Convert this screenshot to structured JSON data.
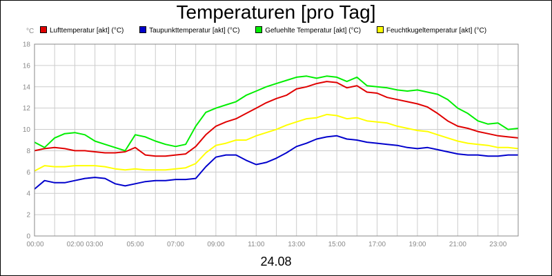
{
  "chart_data": {
    "type": "line",
    "title": "Temperaturen [pro Tag]",
    "unit": "°C",
    "xlabel": "24.08",
    "ylim": [
      0,
      18
    ],
    "yticks": [
      "0",
      "2",
      "4",
      "6",
      "8",
      "10",
      "12",
      "14",
      "16",
      "18"
    ],
    "x_tick_labels": [
      "00:00",
      "02:00 03:00",
      "05:00",
      "07:00",
      "09:00",
      "11:00",
      "13:00",
      "15:00",
      "17:00",
      "19:00",
      "21:00",
      "23:00"
    ],
    "x_range_hours": [
      0,
      24
    ],
    "grid": true,
    "legend_placement": "top",
    "series": [
      {
        "name": "Lufttemperatur [akt] (°C)",
        "color": "#e00000",
        "x": [
          0,
          0.5,
          1,
          1.5,
          2,
          2.5,
          3,
          3.5,
          4,
          4.5,
          5,
          5.5,
          6,
          6.5,
          7,
          7.5,
          8,
          8.5,
          9,
          9.5,
          10,
          10.5,
          11,
          11.5,
          12,
          12.5,
          13,
          13.5,
          14,
          14.5,
          15,
          15.5,
          16,
          16.5,
          17,
          17.5,
          18,
          18.5,
          19,
          19.5,
          20,
          20.5,
          21,
          21.5,
          22,
          22.5,
          23,
          23.5,
          24
        ],
        "values": [
          8.0,
          8.2,
          8.3,
          8.2,
          8.0,
          8.0,
          7.9,
          7.8,
          7.8,
          7.9,
          8.3,
          7.6,
          7.5,
          7.5,
          7.6,
          7.7,
          8.4,
          9.5,
          10.3,
          10.7,
          11.0,
          11.5,
          12.0,
          12.5,
          12.9,
          13.2,
          13.8,
          14.0,
          14.3,
          14.5,
          14.4,
          13.9,
          14.1,
          13.5,
          13.4,
          13.0,
          12.8,
          12.6,
          12.4,
          12.1,
          11.5,
          10.8,
          10.3,
          10.1,
          9.8,
          9.6,
          9.4,
          9.3,
          9.2
        ]
      },
      {
        "name": "Taupunkttemperatur [akt] (°C)",
        "color": "#0000cc",
        "x": [
          0,
          0.5,
          1,
          1.5,
          2,
          2.5,
          3,
          3.5,
          4,
          4.5,
          5,
          5.5,
          6,
          6.5,
          7,
          7.5,
          8,
          8.5,
          9,
          9.5,
          10,
          10.5,
          11,
          11.5,
          12,
          12.5,
          13,
          13.5,
          14,
          14.5,
          15,
          15.5,
          16,
          16.5,
          17,
          17.5,
          18,
          18.5,
          19,
          19.5,
          20,
          20.5,
          21,
          21.5,
          22,
          22.5,
          23,
          23.5,
          24
        ],
        "values": [
          4.4,
          5.2,
          5.0,
          5.0,
          5.2,
          5.4,
          5.5,
          5.4,
          4.9,
          4.7,
          4.9,
          5.1,
          5.2,
          5.2,
          5.3,
          5.3,
          5.4,
          6.5,
          7.4,
          7.6,
          7.6,
          7.1,
          6.7,
          6.9,
          7.3,
          7.8,
          8.4,
          8.7,
          9.1,
          9.3,
          9.4,
          9.1,
          9.0,
          8.8,
          8.7,
          8.6,
          8.5,
          8.3,
          8.2,
          8.3,
          8.1,
          7.9,
          7.7,
          7.6,
          7.6,
          7.5,
          7.5,
          7.6,
          7.6
        ]
      },
      {
        "name": "Gefuehlte Temperatur [akt] (°C)",
        "color": "#00ee00",
        "x": [
          0,
          0.5,
          1,
          1.5,
          2,
          2.5,
          3,
          3.5,
          4,
          4.5,
          5,
          5.5,
          6,
          6.5,
          7,
          7.5,
          8,
          8.5,
          9,
          9.5,
          10,
          10.5,
          11,
          11.5,
          12,
          12.5,
          13,
          13.5,
          14,
          14.5,
          15,
          15.5,
          16,
          16.5,
          17,
          17.5,
          18,
          18.5,
          19,
          19.5,
          20,
          20.5,
          21,
          21.5,
          22,
          22.5,
          23,
          23.5,
          24
        ],
        "values": [
          8.8,
          8.3,
          9.2,
          9.6,
          9.7,
          9.5,
          8.9,
          8.6,
          8.3,
          8.0,
          9.5,
          9.3,
          8.9,
          8.6,
          8.4,
          8.6,
          10.3,
          11.6,
          12.0,
          12.3,
          12.6,
          13.2,
          13.6,
          14.0,
          14.3,
          14.6,
          14.9,
          15.0,
          14.8,
          15.0,
          14.9,
          14.5,
          14.9,
          14.1,
          14.0,
          13.9,
          13.7,
          13.6,
          13.7,
          13.5,
          13.3,
          12.8,
          12.0,
          11.5,
          10.8,
          10.5,
          10.6,
          10.0,
          10.1
        ]
      },
      {
        "name": "Feuchtkugeltemperatur [akt] (°C)",
        "color": "#ffff00",
        "x": [
          0,
          0.5,
          1,
          1.5,
          2,
          2.5,
          3,
          3.5,
          4,
          4.5,
          5,
          5.5,
          6,
          6.5,
          7,
          7.5,
          8,
          8.5,
          9,
          9.5,
          10,
          10.5,
          11,
          11.5,
          12,
          12.5,
          13,
          13.5,
          14,
          14.5,
          15,
          15.5,
          16,
          16.5,
          17,
          17.5,
          18,
          18.5,
          19,
          19.5,
          20,
          20.5,
          21,
          21.5,
          22,
          22.5,
          23,
          23.5,
          24
        ],
        "values": [
          6.1,
          6.6,
          6.5,
          6.5,
          6.6,
          6.6,
          6.6,
          6.5,
          6.3,
          6.2,
          6.3,
          6.2,
          6.2,
          6.2,
          6.3,
          6.4,
          6.8,
          7.8,
          8.5,
          8.7,
          9.0,
          9.0,
          9.4,
          9.7,
          10.0,
          10.4,
          10.7,
          11.0,
          11.1,
          11.4,
          11.3,
          11.0,
          11.1,
          10.8,
          10.7,
          10.6,
          10.3,
          10.1,
          9.9,
          9.8,
          9.5,
          9.2,
          8.9,
          8.7,
          8.6,
          8.5,
          8.3,
          8.3,
          8.2
        ]
      }
    ]
  }
}
